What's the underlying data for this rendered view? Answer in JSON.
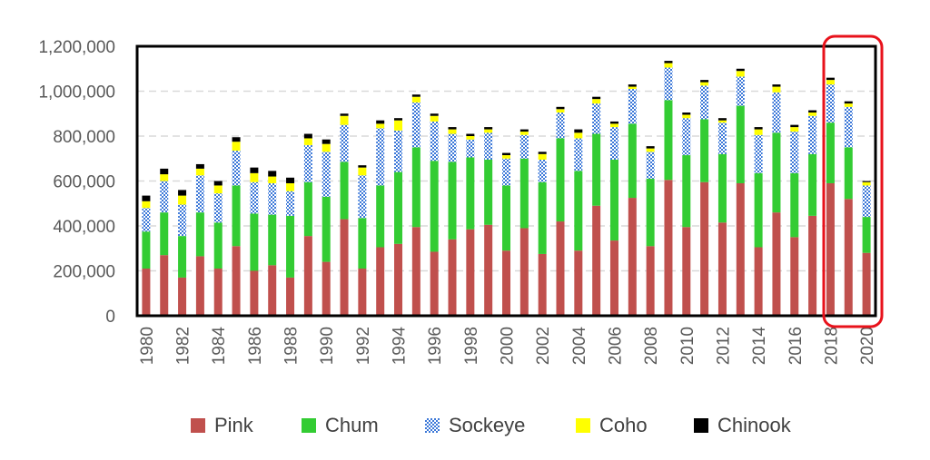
{
  "chart_data": {
    "type": "bar",
    "stacked": true,
    "grid": "horizontal dashed",
    "legend_position": "bottom",
    "x": [
      1980,
      1981,
      1982,
      1983,
      1984,
      1985,
      1986,
      1987,
      1988,
      1989,
      1990,
      1991,
      1992,
      1993,
      1994,
      1995,
      1996,
      1997,
      1998,
      1999,
      2000,
      2001,
      2002,
      2003,
      2004,
      2005,
      2006,
      2007,
      2008,
      2009,
      2010,
      2011,
      2012,
      2013,
      2014,
      2015,
      2016,
      2017,
      2018,
      2019,
      2020
    ],
    "x_tick_labels": [
      "1980",
      "1982",
      "1984",
      "1986",
      "1988",
      "1990",
      "1992",
      "1994",
      "1996",
      "1998",
      "2000",
      "2002",
      "2004",
      "2006",
      "2008",
      "2010",
      "2012",
      "2014",
      "2016",
      "2018",
      "2020"
    ],
    "ylim": [
      0,
      1200000
    ],
    "y_tick_labels": [
      "0",
      "200,000",
      "400,000",
      "600,000",
      "800,000",
      "1,000,000",
      "1,200,000"
    ],
    "y_ticks": [
      0,
      200000,
      400000,
      600000,
      800000,
      1000000,
      1200000
    ],
    "highlight": {
      "x_range": [
        2019,
        2020
      ],
      "color": "#e8121b"
    },
    "series": [
      {
        "name": "Pink",
        "color": "#c0504d",
        "values": [
          210000,
          270000,
          170000,
          265000,
          210000,
          310000,
          200000,
          225000,
          170000,
          355000,
          240000,
          430000,
          210000,
          305000,
          320000,
          395000,
          285000,
          340000,
          385000,
          405000,
          290000,
          390000,
          275000,
          420000,
          290000,
          490000,
          335000,
          525000,
          310000,
          605000,
          395000,
          595000,
          415000,
          590000,
          305000,
          460000,
          350000,
          445000,
          590000,
          520000,
          280000
        ]
      },
      {
        "name": "Chum",
        "color": "#33cc33",
        "values": [
          165000,
          190000,
          185000,
          195000,
          205000,
          270000,
          255000,
          225000,
          275000,
          240000,
          290000,
          255000,
          225000,
          275000,
          320000,
          355000,
          405000,
          345000,
          320000,
          290000,
          290000,
          310000,
          320000,
          370000,
          355000,
          320000,
          360000,
          330000,
          300000,
          355000,
          320000,
          280000,
          305000,
          345000,
          330000,
          355000,
          285000,
          275000,
          270000,
          230000,
          160000
        ]
      },
      {
        "name": "Sockeye",
        "color": "#3c78d8",
        "values": [
          105000,
          140000,
          140000,
          165000,
          130000,
          155000,
          140000,
          140000,
          110000,
          165000,
          200000,
          165000,
          190000,
          255000,
          185000,
          200000,
          175000,
          125000,
          80000,
          120000,
          120000,
          105000,
          100000,
          115000,
          145000,
          135000,
          145000,
          155000,
          120000,
          145000,
          165000,
          150000,
          140000,
          130000,
          170000,
          180000,
          185000,
          170000,
          170000,
          180000,
          140000
        ]
      },
      {
        "name": "Coho",
        "color": "#ffff00",
        "values": [
          30000,
          30000,
          40000,
          30000,
          35000,
          40000,
          40000,
          30000,
          35000,
          30000,
          35000,
          40000,
          35000,
          20000,
          45000,
          25000,
          25000,
          20000,
          15000,
          15000,
          15000,
          15000,
          25000,
          15000,
          25000,
          20000,
          15000,
          10000,
          15000,
          20000,
          15000,
          15000,
          10000,
          25000,
          25000,
          25000,
          20000,
          15000,
          20000,
          15000,
          15000
        ]
      },
      {
        "name": "Chinook",
        "color": "#000000",
        "values": [
          25000,
          25000,
          25000,
          20000,
          20000,
          20000,
          25000,
          25000,
          25000,
          20000,
          20000,
          10000,
          10000,
          15000,
          10000,
          10000,
          10000,
          10000,
          10000,
          10000,
          10000,
          10000,
          10000,
          10000,
          15000,
          10000,
          10000,
          10000,
          10000,
          10000,
          10000,
          10000,
          10000,
          10000,
          10000,
          10000,
          10000,
          10000,
          10000,
          10000,
          5000
        ]
      }
    ]
  }
}
